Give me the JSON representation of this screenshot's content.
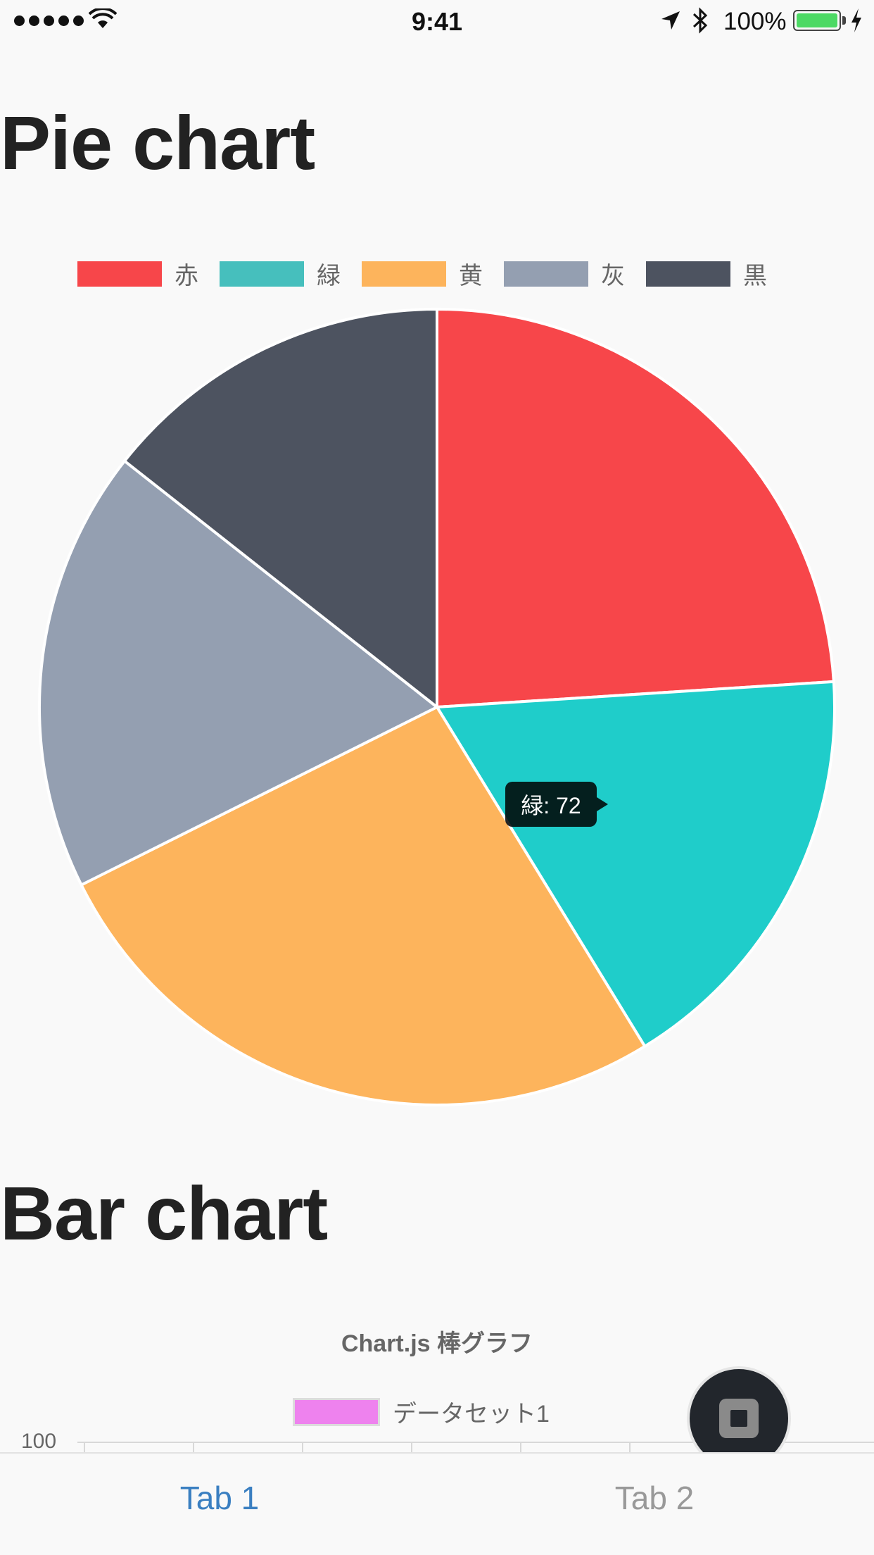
{
  "status_bar": {
    "time": "9:41",
    "battery_percent": "100%",
    "signal_bars": 5,
    "wifi_icon": "wifi-icon",
    "location_icon": "location-arrow-icon",
    "bluetooth_icon": "bluetooth-icon",
    "charging_icon": "charging-bolt-icon",
    "battery_level": 1.0
  },
  "pie_section": {
    "heading": "Pie chart"
  },
  "bar_section": {
    "heading": "Bar chart"
  },
  "chart_data": [
    {
      "type": "pie",
      "categories": [
        "赤",
        "緑",
        "黄",
        "灰",
        "黒"
      ],
      "values": [
        100,
        72,
        110,
        75,
        60
      ],
      "colors": [
        "#f7464a",
        "#1fcdca",
        "#fdb45c",
        "#949fb1",
        "#4d5360"
      ],
      "legend_colors": [
        "#f7464a",
        "#46bfbd",
        "#fdb45c",
        "#949fb1",
        "#4d5360"
      ],
      "legend_placement": "top",
      "title": "",
      "tooltip": {
        "category": "緑",
        "value": 72,
        "text": "緑: 72"
      }
    },
    {
      "type": "bar",
      "title": "Chart.js 棒グラフ",
      "series": [
        {
          "name": "データセット1",
          "color": "#ee82ee"
        }
      ],
      "y_tick_visible": "100",
      "legend_placement": "top",
      "grid": true
    }
  ],
  "tabs": [
    {
      "label": "Tab 1",
      "active": true
    },
    {
      "label": "Tab 2",
      "active": false
    }
  ],
  "fab": {
    "icon": "stop-square-icon"
  }
}
